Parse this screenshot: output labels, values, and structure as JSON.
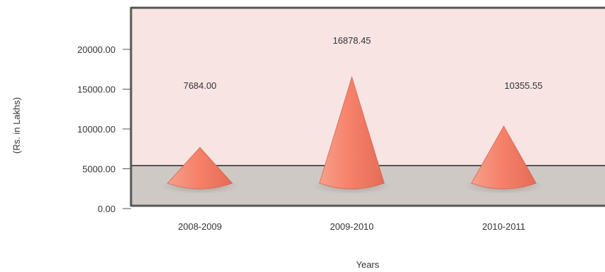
{
  "chart_data": {
    "type": "bar",
    "mark_shape": "cone",
    "categories": [
      "2008-2009",
      "2009-2010",
      "2010-2011"
    ],
    "values": [
      7684.0,
      16878.45,
      10355.55
    ],
    "data_labels": [
      "7684.00",
      "16878.45",
      "10355.55"
    ],
    "y_tick_labels": [
      "0.00",
      "5000.00",
      "10000.00",
      "15000.00",
      "20000.00"
    ],
    "y_ticks": [
      0,
      5000,
      10000,
      15000,
      20000
    ],
    "xlabel": "Years",
    "ylabel": "(Rs. in Lakhs)",
    "ylim": [
      0,
      25000
    ],
    "grid": false,
    "colors": {
      "plot_background": "#f7e4e3",
      "floor": "#cfc9c6",
      "frame": "#555555",
      "cone": "#f0826c",
      "cone_shadow": "#b9b1ad"
    }
  }
}
